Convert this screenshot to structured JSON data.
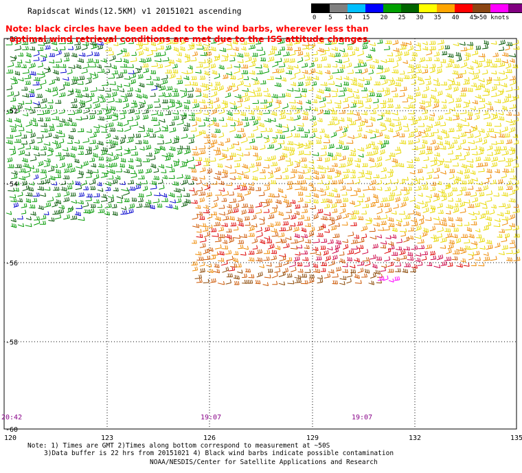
{
  "title": "Rapidscat Winds(12.5KM) v1 20151021 ascending",
  "note": {
    "line1": "Note: black circles have been added to the wind barbs, wherever less than",
    "line2": "optimal wind retrieval conditions are met due to the ISS attitude changes."
  },
  "legend": {
    "labels": [
      "0",
      "5",
      "10",
      "15",
      "20",
      "25",
      "30",
      "35",
      "40",
      "45",
      ">50 knots"
    ],
    "colors": [
      "#000000",
      "#808080",
      "#00bfff",
      "#0000ff",
      "#00a000",
      "#006400",
      "#ffff00",
      "#ffa500",
      "#ff0000",
      "#8b4513",
      "#ff00ff",
      "#800080"
    ]
  },
  "map": {
    "lat_labels": [
      "-50",
      "-52",
      "-54",
      "-56",
      "-58",
      "-60"
    ],
    "lon_labels": [
      "120",
      "123",
      "126",
      "129",
      "132",
      "135"
    ],
    "time_labels": [
      "20:42",
      "19:07",
      "19:07"
    ],
    "colors": {
      "green": "#009900",
      "darkgreen": "#005500",
      "blue": "#0000cc",
      "yellow": "#e8d800",
      "orange": "#ee8800",
      "darkorange": "#cc5500",
      "red": "#dd0000",
      "crimson": "#cc0044",
      "brown": "#884400",
      "magenta": "#ff00ff",
      "timelabel": "#880088"
    }
  },
  "footer": {
    "line1": "Note: 1) Times are GMT 2)Times along bottom correspond to measurement at ~50S",
    "line2": "3)Data buffer is 22 hrs from 20151021 4) Black wind barbs indicate possible contamination",
    "line3": "NOAA/NESDIS/Center for Satellite Applications and Research"
  }
}
